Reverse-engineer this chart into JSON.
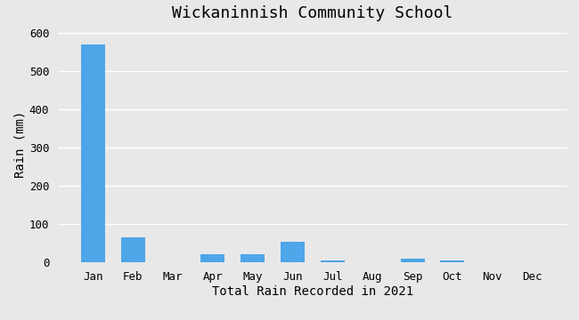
{
  "title": "Wickaninnish Community School",
  "xlabel": "Total Rain Recorded in 2021",
  "ylabel": "Rain (mm)",
  "categories": [
    "Jan",
    "Feb",
    "Mar",
    "Apr",
    "May",
    "Jun",
    "Jul",
    "Aug",
    "Sep",
    "Oct",
    "Nov",
    "Dec"
  ],
  "values": [
    570,
    65,
    0,
    22,
    22,
    55,
    5,
    0,
    10,
    5,
    0,
    0
  ],
  "bar_color": "#4da6e8",
  "ylim": [
    0,
    620
  ],
  "yticks": [
    0,
    100,
    200,
    300,
    400,
    500,
    600
  ],
  "background_color": "#e8e8e8",
  "plot_bg_color": "#e8e8e8",
  "grid_color": "#ffffff",
  "title_fontsize": 13,
  "label_fontsize": 10,
  "tick_fontsize": 9,
  "font_family": "monospace"
}
